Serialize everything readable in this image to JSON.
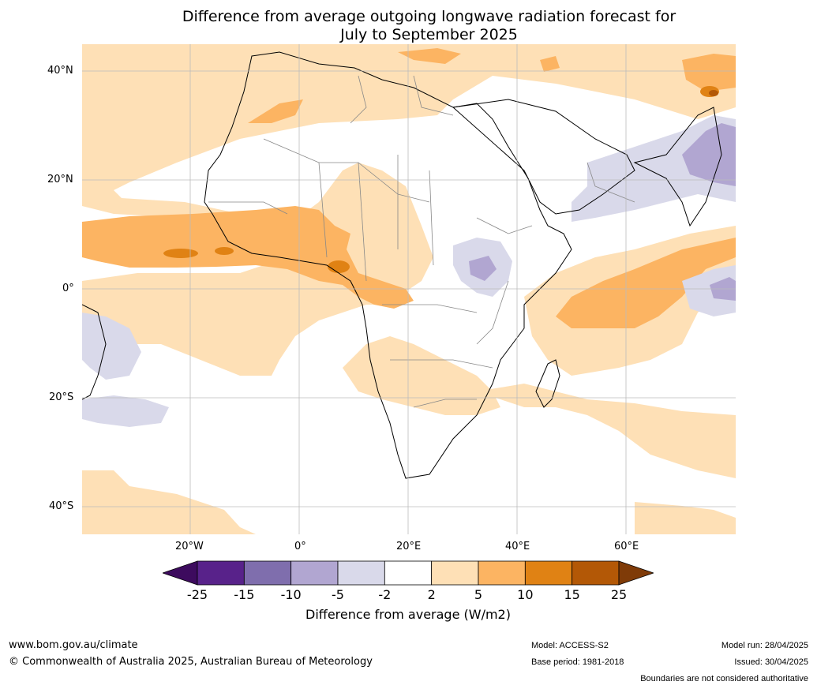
{
  "title_line1": "Difference from average outgoing longwave radiation forecast for",
  "title_line2": "July to September 2025",
  "lat_labels": [
    "40°N",
    "20°N",
    "0°",
    "20°S",
    "40°S"
  ],
  "lon_labels": [
    "20°W",
    "0°",
    "20°E",
    "40°E",
    "60°E"
  ],
  "colorbar": {
    "label": "Difference from average (W/m2)",
    "ticks": [
      "-25",
      "-15",
      "-10",
      "-5",
      "-2",
      "2",
      "5",
      "10",
      "15",
      "25"
    ],
    "colors": [
      "#3d0b5e",
      "#58228a",
      "#7f6ead",
      "#b1a6d1",
      "#d9d9ea",
      "#ffffff",
      "#fee0b6",
      "#fcb462",
      "#e08214",
      "#b35806",
      "#7f3b08"
    ]
  },
  "footer": {
    "website": "www.bom.gov.au/climate",
    "copyright": "© Commonwealth of Australia 2025, Australian Bureau of Meteorology",
    "model": "Model: ACCESS-S2",
    "base_period": "Base period: 1981-2018",
    "model_run": "Model run: 28/04/2025",
    "issued": "Issued: 30/04/2025",
    "disclaimer": "Boundaries are not considered authoritative"
  }
}
